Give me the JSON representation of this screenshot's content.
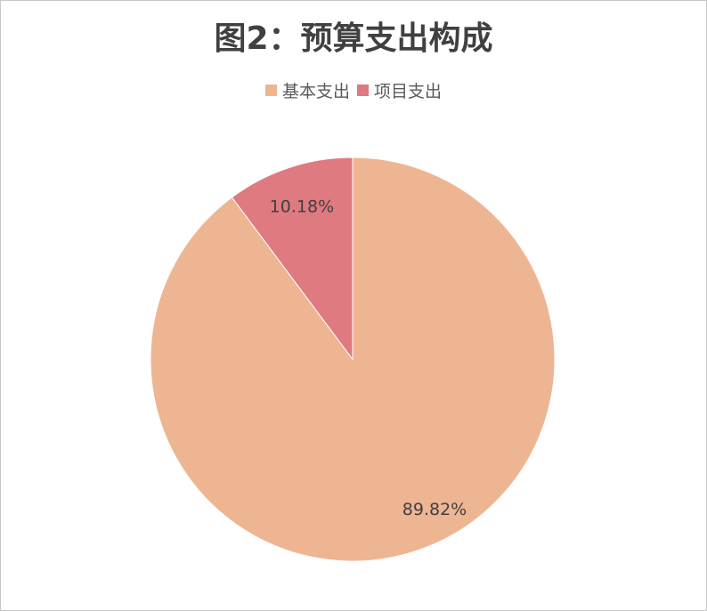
{
  "chart_data": {
    "type": "pie",
    "title": "图2：预算支出构成",
    "categories": [
      "基本支出",
      "项目支出"
    ],
    "values": [
      89.82,
      10.18
    ],
    "labels": [
      "89.82%",
      "10.18%"
    ],
    "colors": [
      "#EEB592",
      "#DE7A80"
    ],
    "legend": "top",
    "start": "top-clockwise"
  }
}
